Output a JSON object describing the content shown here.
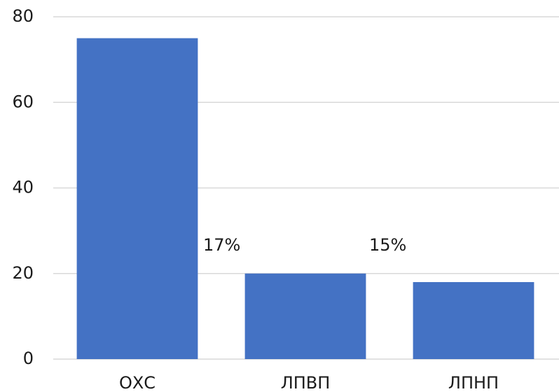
{
  "chart_data": {
    "type": "bar",
    "categories": [
      "ОХС",
      "ЛПВП",
      "ЛПНП"
    ],
    "values": [
      75,
      20,
      18
    ],
    "color": "#4472c4",
    "ylim": [
      0,
      80
    ],
    "yticks": [
      0,
      20,
      40,
      60,
      80
    ],
    "grid": true,
    "annotations": [
      "17%",
      "15%"
    ]
  }
}
